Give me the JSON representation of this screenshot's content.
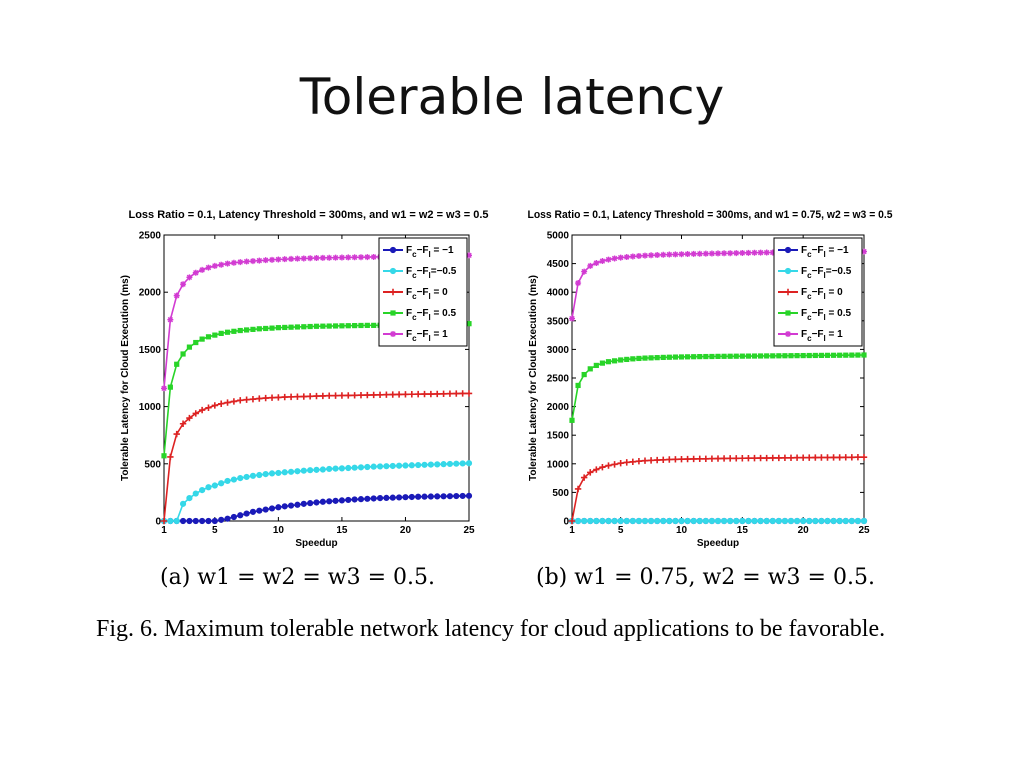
{
  "slide": {
    "title": "Tolerable latency",
    "caption": "Fig. 6.    Maximum tolerable network latency for cloud applications to be favorable.",
    "sub_a": "(a) w1 = w2 = w3 = 0.5.",
    "sub_b": "(b) w1 = 0.75, w2 = w3 = 0.5."
  },
  "chart_data": [
    {
      "type": "line",
      "title": "Loss Ratio = 0.1, Latency Threshold = 300ms, and w1 = w2 = w3 = 0.5",
      "xlabel": "Speedup",
      "ylabel": "Tolerable Latency for Cloud Execution (ms)",
      "xlim": [
        1,
        25
      ],
      "ylim": [
        0,
        2500
      ],
      "xticks": [
        1,
        5,
        10,
        15,
        20,
        25
      ],
      "yticks": [
        0,
        500,
        1000,
        1500,
        2000,
        2500
      ],
      "legend_position": "top-right",
      "x": [
        1,
        1.5,
        2,
        2.5,
        3,
        3.5,
        4,
        4.5,
        5,
        5.5,
        6,
        6.5,
        7,
        7.5,
        8,
        8.5,
        9,
        9.5,
        10,
        10.5,
        11,
        11.5,
        12,
        12.5,
        13,
        13.5,
        14,
        14.5,
        15,
        15.5,
        16,
        16.5,
        17,
        17.5,
        18,
        18.5,
        19,
        19.5,
        20,
        20.5,
        21,
        21.5,
        22,
        22.5,
        23,
        23.5,
        24,
        24.5,
        25
      ],
      "series": [
        {
          "name": "Fc−Fl = −1",
          "color": "#1a1ab8",
          "marker": "circle",
          "values": [
            0,
            0,
            0,
            0,
            0,
            0,
            0,
            0,
            0,
            10,
            20,
            35,
            50,
            65,
            80,
            90,
            100,
            110,
            120,
            128,
            135,
            142,
            150,
            156,
            162,
            168,
            172,
            176,
            180,
            184,
            188,
            191,
            194,
            197,
            200,
            202,
            204,
            206,
            208,
            210,
            212,
            213,
            214,
            215,
            216,
            217,
            218,
            219,
            220
          ]
        },
        {
          "name": "Fc−Fl=−0.5",
          "color": "#35d8e8",
          "marker": "circle",
          "values": [
            0,
            0,
            0,
            150,
            200,
            240,
            270,
            295,
            310,
            330,
            350,
            362,
            375,
            385,
            395,
            402,
            410,
            416,
            420,
            426,
            430,
            435,
            440,
            444,
            447,
            450,
            455,
            458,
            460,
            463,
            466,
            469,
            472,
            475,
            477,
            479,
            481,
            483,
            485,
            487,
            489,
            491,
            493,
            495,
            497,
            499,
            501,
            503,
            505
          ]
        },
        {
          "name": "Fc−Fl = 0",
          "color": "#dd2222",
          "marker": "plus",
          "values": [
            0,
            560,
            760,
            850,
            900,
            940,
            970,
            990,
            1010,
            1025,
            1035,
            1045,
            1055,
            1060,
            1065,
            1070,
            1075,
            1078,
            1080,
            1083,
            1085,
            1087,
            1088,
            1090,
            1092,
            1093,
            1095,
            1096,
            1097,
            1098,
            1099,
            1100,
            1101,
            1102,
            1103,
            1104,
            1105,
            1106,
            1107,
            1108,
            1109,
            1110,
            1110,
            1111,
            1112,
            1113,
            1114,
            1115,
            1115
          ]
        },
        {
          "name": "Fc−Fl = 0.5",
          "color": "#28d428",
          "marker": "square",
          "values": [
            570,
            1170,
            1370,
            1460,
            1520,
            1560,
            1590,
            1610,
            1625,
            1640,
            1650,
            1658,
            1665,
            1670,
            1675,
            1680,
            1683,
            1686,
            1690,
            1692,
            1694,
            1696,
            1698,
            1700,
            1702,
            1703,
            1704,
            1705,
            1706,
            1707,
            1708,
            1709,
            1710,
            1710,
            1711,
            1712,
            1713,
            1714,
            1715,
            1716,
            1717,
            1718,
            1719,
            1720,
            1721,
            1722,
            1723,
            1724,
            1725
          ]
        },
        {
          "name": "Fc−Fl = 1",
          "color": "#d23bd2",
          "marker": "star",
          "values": [
            1160,
            1760,
            1970,
            2070,
            2130,
            2170,
            2195,
            2215,
            2230,
            2240,
            2250,
            2257,
            2263,
            2268,
            2272,
            2276,
            2280,
            2283,
            2286,
            2289,
            2291,
            2293,
            2295,
            2297,
            2299,
            2300,
            2301,
            2302,
            2303,
            2304,
            2305,
            2306,
            2307,
            2308,
            2308,
            2309,
            2310,
            2311,
            2312,
            2313,
            2314,
            2315,
            2316,
            2317,
            2318,
            2319,
            2320,
            2321,
            2322
          ]
        }
      ]
    },
    {
      "type": "line",
      "title": "Loss Ratio = 0.1, Latency Threshold = 300ms, and w1 = 0.75, w2 = w3 = 0.5",
      "xlabel": "Speedup",
      "ylabel": "Tolerable Latency for Cloud Execution (ms)",
      "xlim": [
        1,
        25
      ],
      "ylim": [
        0,
        5000
      ],
      "xticks": [
        1,
        5,
        10,
        15,
        20,
        25
      ],
      "yticks": [
        0,
        500,
        1000,
        1500,
        2000,
        2500,
        3000,
        3500,
        4000,
        4500,
        5000
      ],
      "legend_position": "top-right",
      "x": [
        1,
        1.5,
        2,
        2.5,
        3,
        3.5,
        4,
        4.5,
        5,
        5.5,
        6,
        6.5,
        7,
        7.5,
        8,
        8.5,
        9,
        9.5,
        10,
        10.5,
        11,
        11.5,
        12,
        12.5,
        13,
        13.5,
        14,
        14.5,
        15,
        15.5,
        16,
        16.5,
        17,
        17.5,
        18,
        18.5,
        19,
        19.5,
        20,
        20.5,
        21,
        21.5,
        22,
        22.5,
        23,
        23.5,
        24,
        24.5,
        25
      ],
      "series": [
        {
          "name": "Fc−Fl = −1",
          "color": "#1a1ab8",
          "marker": "circle",
          "values": [
            0,
            0,
            0,
            0,
            0,
            0,
            0,
            0,
            0,
            0,
            0,
            0,
            0,
            0,
            0,
            0,
            0,
            0,
            0,
            0,
            0,
            0,
            0,
            0,
            0,
            0,
            0,
            0,
            0,
            0,
            0,
            0,
            0,
            0,
            0,
            0,
            0,
            0,
            0,
            0,
            0,
            0,
            0,
            0,
            0,
            0,
            0,
            0,
            0
          ]
        },
        {
          "name": "Fc−Fl=−0.5",
          "color": "#35d8e8",
          "marker": "circle",
          "values": [
            0,
            0,
            0,
            0,
            0,
            0,
            0,
            0,
            0,
            0,
            0,
            0,
            0,
            0,
            0,
            0,
            0,
            0,
            0,
            0,
            0,
            0,
            0,
            0,
            0,
            0,
            0,
            0,
            0,
            0,
            0,
            0,
            0,
            0,
            0,
            0,
            0,
            0,
            0,
            0,
            0,
            0,
            0,
            0,
            0,
            0,
            0,
            0,
            0
          ]
        },
        {
          "name": "Fc−Fl = 0",
          "color": "#dd2222",
          "marker": "plus",
          "values": [
            0,
            560,
            760,
            850,
            900,
            940,
            970,
            990,
            1010,
            1025,
            1035,
            1045,
            1055,
            1060,
            1065,
            1070,
            1075,
            1078,
            1080,
            1083,
            1085,
            1087,
            1088,
            1090,
            1092,
            1093,
            1095,
            1096,
            1097,
            1098,
            1099,
            1100,
            1101,
            1102,
            1103,
            1104,
            1105,
            1106,
            1107,
            1108,
            1109,
            1110,
            1110,
            1111,
            1112,
            1113,
            1114,
            1115,
            1115
          ]
        },
        {
          "name": "Fc−Fl = 0.5",
          "color": "#28d428",
          "marker": "square",
          "values": [
            1760,
            2370,
            2560,
            2660,
            2720,
            2760,
            2785,
            2800,
            2815,
            2825,
            2835,
            2842,
            2848,
            2852,
            2856,
            2860,
            2863,
            2866,
            2868,
            2870,
            2872,
            2874,
            2875,
            2876,
            2878,
            2879,
            2880,
            2881,
            2882,
            2883,
            2884,
            2885,
            2886,
            2887,
            2888,
            2889,
            2890,
            2891,
            2892,
            2893,
            2894,
            2895,
            2896,
            2897,
            2898,
            2899,
            2900,
            2901,
            2902
          ]
        },
        {
          "name": "Fc−Fl = 1",
          "color": "#d23bd2",
          "marker": "star",
          "values": [
            3540,
            4160,
            4360,
            4460,
            4510,
            4545,
            4570,
            4590,
            4605,
            4615,
            4625,
            4633,
            4640,
            4645,
            4650,
            4654,
            4658,
            4661,
            4664,
            4667,
            4670,
            4672,
            4674,
            4676,
            4678,
            4680,
            4682,
            4684,
            4686,
            4688,
            4690,
            4692,
            4693,
            4694,
            4695,
            4696,
            4697,
            4698,
            4699,
            4700,
            4701,
            4702,
            4703,
            4704,
            4705,
            4706,
            4707,
            4708,
            4710
          ]
        }
      ]
    }
  ]
}
